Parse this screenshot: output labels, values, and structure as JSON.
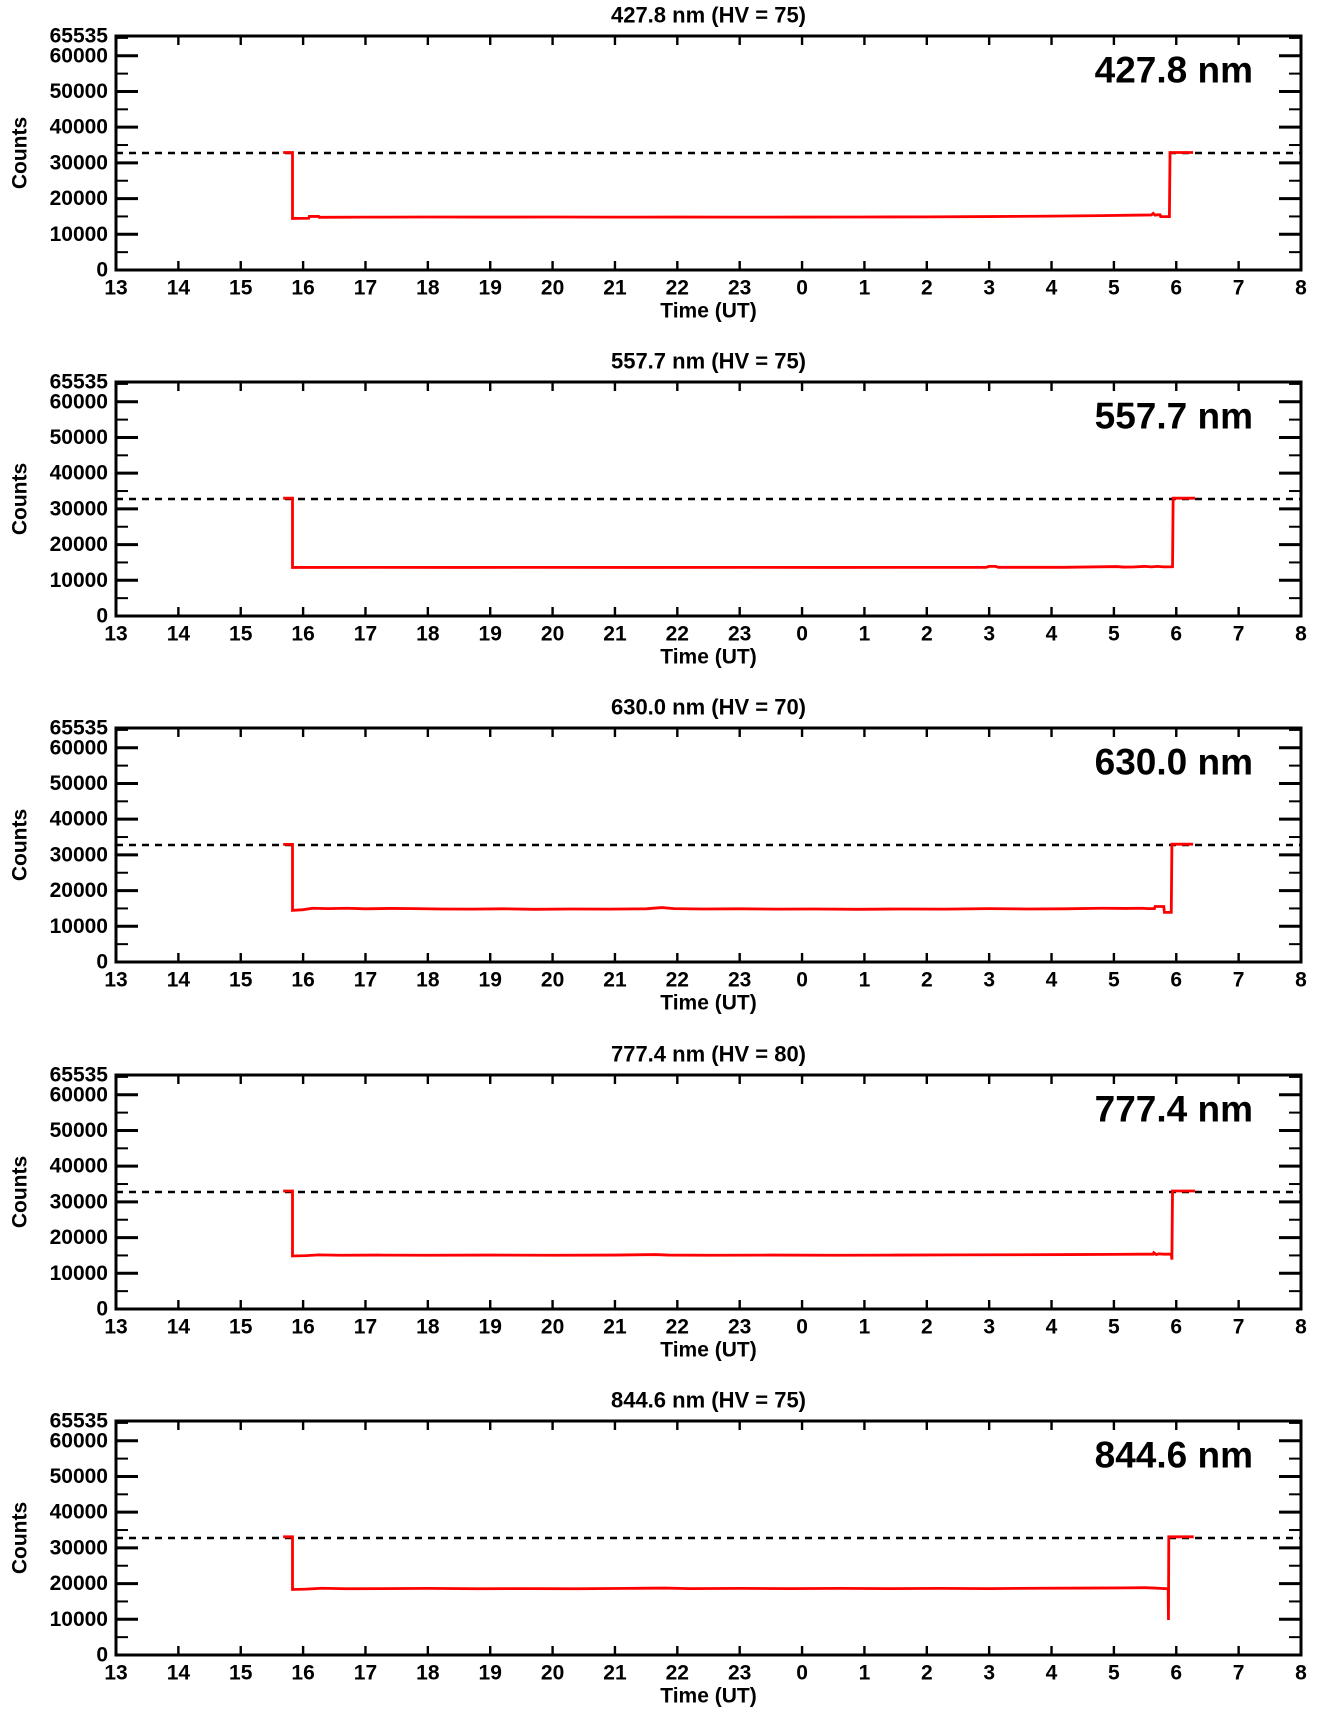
{
  "figure": {
    "background_color": "#ffffff",
    "axis_color": "#000000",
    "line_color": "#ff0000",
    "threshold_color": "#000000"
  },
  "chart_data": {
    "type": "line",
    "xlabel": "Time (UT)",
    "ylabel": "Counts",
    "ylim": [
      0,
      65535
    ],
    "y_major_ticks": [
      0,
      10000,
      20000,
      30000,
      40000,
      50000,
      60000,
      65535
    ],
    "y_major_tick_labels": [
      "0",
      "10000",
      "20000",
      "30000",
      "40000",
      "50000",
      "60000",
      "65535"
    ],
    "y_minor_step": 5000,
    "x_hours_continuous": [
      13,
      32
    ],
    "x_tick_labels": [
      "13",
      "14",
      "15",
      "16",
      "17",
      "18",
      "19",
      "20",
      "21",
      "22",
      "23",
      "0",
      "1",
      "2",
      "3",
      "4",
      "5",
      "6",
      "7",
      "8"
    ],
    "x_convention": "hours UT; plotted hours >= 24 correspond to next-day times (value minus 24)",
    "threshold": 32767,
    "threshold_style": "dashed",
    "grid": false,
    "legend": "none",
    "panels": [
      {
        "title": "427.8 nm (HV = 75)",
        "wavelength_label": "427.8 nm",
        "hv": "75",
        "points": [
          [
            15.68,
            32900
          ],
          [
            15.83,
            32900
          ],
          [
            15.83,
            14450
          ],
          [
            16.09,
            14500
          ],
          [
            16.1,
            15000
          ],
          [
            16.25,
            15000
          ],
          [
            16.26,
            14750
          ],
          [
            17.0,
            14800
          ],
          [
            18.0,
            14840
          ],
          [
            19.0,
            14820
          ],
          [
            20.0,
            14840
          ],
          [
            21.0,
            14800
          ],
          [
            22.0,
            14820
          ],
          [
            23.0,
            14800
          ],
          [
            24.0,
            14820
          ],
          [
            25.0,
            14840
          ],
          [
            26.0,
            14880
          ],
          [
            27.0,
            14960
          ],
          [
            28.0,
            15080
          ],
          [
            28.8,
            15220
          ],
          [
            29.3,
            15350
          ],
          [
            29.55,
            15400
          ],
          [
            29.6,
            15400
          ],
          [
            29.63,
            15850
          ],
          [
            29.66,
            15350
          ],
          [
            29.7,
            15450
          ],
          [
            29.74,
            15450
          ],
          [
            29.75,
            14950
          ],
          [
            29.89,
            14950
          ],
          [
            29.9,
            32900
          ],
          [
            30.27,
            32900
          ]
        ]
      },
      {
        "title": "557.7 nm (HV = 75)",
        "wavelength_label": "557.7 nm",
        "hv": "75",
        "points": [
          [
            15.68,
            33000
          ],
          [
            15.83,
            33000
          ],
          [
            15.83,
            13600
          ],
          [
            17.0,
            13620
          ],
          [
            18.5,
            13600
          ],
          [
            20.0,
            13620
          ],
          [
            21.5,
            13600
          ],
          [
            23.0,
            13620
          ],
          [
            24.5,
            13600
          ],
          [
            26.0,
            13620
          ],
          [
            26.95,
            13630
          ],
          [
            27.0,
            13900
          ],
          [
            27.1,
            13900
          ],
          [
            27.15,
            13640
          ],
          [
            28.2,
            13640
          ],
          [
            29.05,
            13850
          ],
          [
            29.15,
            13700
          ],
          [
            29.3,
            13720
          ],
          [
            29.5,
            13900
          ],
          [
            29.6,
            13750
          ],
          [
            29.7,
            13900
          ],
          [
            29.8,
            13750
          ],
          [
            29.94,
            13780
          ],
          [
            29.95,
            33000
          ],
          [
            30.3,
            33000
          ]
        ]
      },
      {
        "title": "630.0 nm (HV = 70)",
        "wavelength_label": "630.0 nm",
        "hv": "70",
        "points": [
          [
            15.68,
            32950
          ],
          [
            15.83,
            32950
          ],
          [
            15.83,
            14450
          ],
          [
            16.0,
            14650
          ],
          [
            16.15,
            15050
          ],
          [
            16.4,
            14950
          ],
          [
            16.7,
            15050
          ],
          [
            17.0,
            14900
          ],
          [
            17.4,
            15000
          ],
          [
            17.8,
            14950
          ],
          [
            18.2,
            14850
          ],
          [
            18.7,
            14800
          ],
          [
            19.2,
            14900
          ],
          [
            19.7,
            14750
          ],
          [
            20.3,
            14850
          ],
          [
            20.9,
            14800
          ],
          [
            21.5,
            14900
          ],
          [
            21.75,
            15250
          ],
          [
            21.95,
            14950
          ],
          [
            22.4,
            14850
          ],
          [
            23.0,
            14900
          ],
          [
            23.6,
            14800
          ],
          [
            24.2,
            14850
          ],
          [
            24.9,
            14750
          ],
          [
            25.6,
            14850
          ],
          [
            26.3,
            14800
          ],
          [
            27.0,
            14950
          ],
          [
            27.6,
            14850
          ],
          [
            28.2,
            14900
          ],
          [
            28.8,
            15050
          ],
          [
            29.2,
            15000
          ],
          [
            29.45,
            15050
          ],
          [
            29.55,
            14950
          ],
          [
            29.65,
            14950
          ],
          [
            29.66,
            15550
          ],
          [
            29.8,
            15550
          ],
          [
            29.81,
            13900
          ],
          [
            29.92,
            13900
          ],
          [
            29.93,
            33000
          ],
          [
            30.27,
            33000
          ]
        ]
      },
      {
        "title": "777.4 nm (HV = 80)",
        "wavelength_label": "777.4 nm",
        "hv": "80",
        "points": [
          [
            15.68,
            33050
          ],
          [
            15.83,
            33050
          ],
          [
            15.83,
            14850
          ],
          [
            16.05,
            14950
          ],
          [
            16.25,
            15150
          ],
          [
            16.6,
            15050
          ],
          [
            17.2,
            15100
          ],
          [
            18.0,
            15050
          ],
          [
            19.0,
            15100
          ],
          [
            20.0,
            15050
          ],
          [
            21.0,
            15100
          ],
          [
            21.65,
            15250
          ],
          [
            21.85,
            15100
          ],
          [
            22.5,
            15050
          ],
          [
            23.5,
            15100
          ],
          [
            24.5,
            15050
          ],
          [
            25.5,
            15100
          ],
          [
            26.5,
            15150
          ],
          [
            27.5,
            15200
          ],
          [
            28.3,
            15250
          ],
          [
            29.0,
            15300
          ],
          [
            29.4,
            15350
          ],
          [
            29.55,
            15350
          ],
          [
            29.63,
            15350
          ],
          [
            29.64,
            15750
          ],
          [
            29.68,
            15250
          ],
          [
            29.72,
            15450
          ],
          [
            29.8,
            15350
          ],
          [
            29.92,
            15350
          ],
          [
            29.93,
            13850
          ],
          [
            29.94,
            33050
          ],
          [
            30.3,
            33050
          ]
        ]
      },
      {
        "title": "844.6 nm (HV = 75)",
        "wavelength_label": "844.6 nm",
        "hv": "75",
        "points": [
          [
            15.68,
            33100
          ],
          [
            15.83,
            33100
          ],
          [
            15.83,
            18350
          ],
          [
            16.05,
            18450
          ],
          [
            16.3,
            18700
          ],
          [
            16.7,
            18550
          ],
          [
            17.3,
            18600
          ],
          [
            18.0,
            18650
          ],
          [
            18.8,
            18550
          ],
          [
            19.6,
            18600
          ],
          [
            20.4,
            18550
          ],
          [
            21.2,
            18650
          ],
          [
            21.8,
            18750
          ],
          [
            22.2,
            18600
          ],
          [
            23.0,
            18650
          ],
          [
            23.8,
            18600
          ],
          [
            24.6,
            18650
          ],
          [
            25.4,
            18600
          ],
          [
            26.2,
            18650
          ],
          [
            27.0,
            18600
          ],
          [
            27.8,
            18700
          ],
          [
            28.6,
            18750
          ],
          [
            29.2,
            18800
          ],
          [
            29.5,
            18850
          ],
          [
            29.65,
            18750
          ],
          [
            29.75,
            18650
          ],
          [
            29.83,
            18600
          ],
          [
            29.87,
            18600
          ],
          [
            29.875,
            9800
          ],
          [
            29.88,
            33100
          ],
          [
            30.28,
            33100
          ]
        ]
      }
    ]
  }
}
